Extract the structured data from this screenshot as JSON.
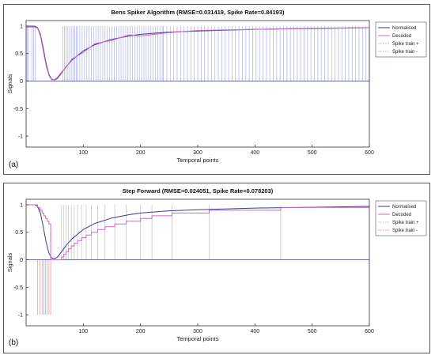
{
  "chart_data": [
    {
      "panel_label": "(a)",
      "type": "line",
      "title": "Bens Spiker Algorithm (RMSE=0.031419, Spike Rate=0.84193)",
      "xlabel": "Temporal points",
      "ylabel": "Signals",
      "xlim": [
        0,
        600
      ],
      "ylim": [
        -1.2,
        1.1
      ],
      "xticks": [
        100,
        200,
        300,
        400,
        500,
        600
      ],
      "yticks": [
        -1,
        -0.5,
        0,
        0.5,
        1
      ],
      "grid": false,
      "legend_position": "top-right",
      "legend": [
        "Normalised",
        "Decoded",
        "Spike train +",
        "Spike train -"
      ],
      "colors": {
        "normalised": "#3a3a8c",
        "decoded": "#c46cc4",
        "spike_pos": "#b9b9ee",
        "spike_neg": "#f0b5b5"
      },
      "series": [
        {
          "name": "Normalised",
          "x": [
            0,
            15,
            20,
            25,
            30,
            35,
            40,
            45,
            50,
            55,
            60,
            70,
            80,
            100,
            120,
            150,
            180,
            200,
            250,
            300,
            400,
            500,
            600
          ],
          "values": [
            1.0,
            1.0,
            0.97,
            0.85,
            0.6,
            0.32,
            0.12,
            0.03,
            0.02,
            0.05,
            0.12,
            0.26,
            0.38,
            0.55,
            0.66,
            0.76,
            0.82,
            0.85,
            0.89,
            0.91,
            0.94,
            0.955,
            0.97
          ]
        },
        {
          "name": "Decoded",
          "x": [
            0,
            15,
            20,
            25,
            30,
            35,
            40,
            45,
            50,
            55,
            60,
            70,
            80,
            100,
            120,
            150,
            180,
            200,
            250,
            300,
            400,
            500,
            600
          ],
          "values": [
            0.98,
            0.98,
            0.96,
            0.82,
            0.55,
            0.28,
            0.1,
            0.02,
            0.03,
            0.07,
            0.14,
            0.25,
            0.4,
            0.52,
            0.68,
            0.74,
            0.84,
            0.82,
            0.88,
            0.92,
            0.94,
            0.96,
            0.97
          ]
        },
        {
          "name": "Spike train +",
          "mode": "stems",
          "value": 1,
          "x_ranges": [
            [
              0,
              5,
              2
            ],
            [
              10,
              18,
              3
            ],
            [
              64,
              90,
              3
            ],
            [
              90,
              240,
              4
            ],
            [
              240,
              600,
              6
            ]
          ]
        },
        {
          "name": "Spike train -",
          "mode": "stems",
          "value": -1,
          "x_ranges": []
        }
      ]
    },
    {
      "panel_label": "(b)",
      "type": "line",
      "title": "Step Forward (RMSE=0.024051, Spike Rate=0.078203)",
      "xlabel": "Temporal points",
      "ylabel": "Signals",
      "xlim": [
        0,
        600
      ],
      "ylim": [
        -1.2,
        1.1
      ],
      "xticks": [
        100,
        200,
        300,
        400,
        500,
        600
      ],
      "yticks": [
        -1,
        -0.5,
        0,
        0.5,
        1
      ],
      "grid": false,
      "legend_position": "top-right",
      "legend": [
        "Normalised",
        "Decoded",
        "Spike train +",
        "Spike train -"
      ],
      "colors": {
        "normalised": "#3a3a8c",
        "decoded": "#c46cc4",
        "spike_pos": "#c8c8c8",
        "spike_neg": "#e8a2a2"
      },
      "series": [
        {
          "name": "Normalised",
          "x": [
            0,
            15,
            20,
            25,
            30,
            35,
            40,
            45,
            50,
            55,
            60,
            70,
            80,
            100,
            120,
            150,
            180,
            200,
            250,
            300,
            400,
            500,
            600
          ],
          "values": [
            1.0,
            1.0,
            0.97,
            0.85,
            0.6,
            0.32,
            0.12,
            0.03,
            0.02,
            0.05,
            0.12,
            0.26,
            0.38,
            0.55,
            0.66,
            0.76,
            0.82,
            0.85,
            0.89,
            0.91,
            0.94,
            0.955,
            0.97
          ]
        },
        {
          "name": "Decoded",
          "mode": "step",
          "x": [
            0,
            20,
            24,
            28,
            31,
            34,
            37,
            40,
            43,
            62,
            66,
            70,
            74,
            79,
            84,
            90,
            97,
            105,
            114,
            125,
            138,
            155,
            175,
            200,
            220,
            255,
            320,
            445,
            600
          ],
          "values": [
            1.0,
            0.95,
            0.9,
            0.85,
            0.8,
            0.75,
            0.7,
            0.65,
            0.0,
            0.05,
            0.1,
            0.15,
            0.2,
            0.25,
            0.3,
            0.35,
            0.4,
            0.45,
            0.5,
            0.55,
            0.6,
            0.65,
            0.7,
            0.75,
            0.8,
            0.85,
            0.9,
            0.95,
            0.95
          ]
        },
        {
          "name": "Spike train +",
          "mode": "stems",
          "value": 1,
          "x": [
            62,
            66,
            70,
            74,
            79,
            84,
            90,
            97,
            105,
            114,
            125,
            138,
            155,
            175,
            200,
            220,
            255,
            320,
            445
          ]
        },
        {
          "name": "Spike train -",
          "mode": "stems",
          "value": -1,
          "x": [
            20,
            24,
            28,
            31,
            34,
            37,
            40,
            43
          ]
        }
      ]
    }
  ]
}
